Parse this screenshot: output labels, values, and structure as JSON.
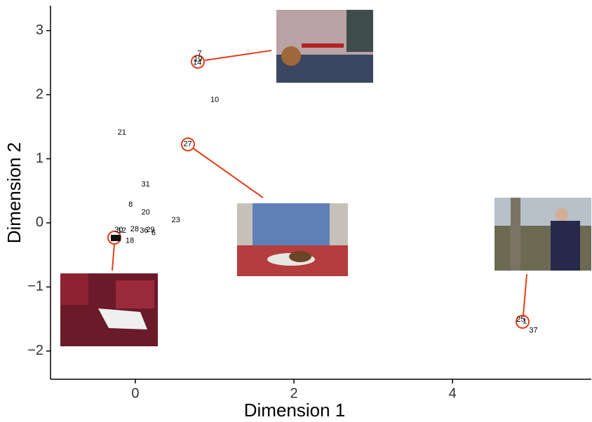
{
  "chart_data": {
    "type": "scatter",
    "x_label": "Dimension 1",
    "y_label": "Dimension 2",
    "labels": [
      "7",
      "14",
      "19",
      "10",
      "21",
      "27",
      "31",
      "8",
      "20",
      "23",
      "28",
      "36",
      "29",
      "6",
      "18",
      "30",
      "12",
      "25",
      "1",
      "37"
    ],
    "x": [
      0.81,
      0.78,
      0.79,
      1.0,
      -0.17,
      0.66,
      0.13,
      -0.06,
      0.13,
      0.51,
      -0.01,
      0.11,
      0.19,
      0.23,
      -0.07,
      -0.21,
      -0.17,
      4.86,
      4.91,
      5.02
    ],
    "values": [
      2.64,
      2.5,
      2.55,
      1.92,
      1.41,
      1.23,
      0.6,
      0.28,
      0.16,
      0.04,
      -0.1,
      -0.12,
      -0.11,
      -0.16,
      -0.28,
      -0.11,
      -0.12,
      -1.51,
      -1.54,
      -1.68
    ],
    "xlim": [
      -1.07,
      5.75
    ],
    "ylim": [
      -2.44,
      3.39
    ],
    "xticks": [
      0,
      2,
      4
    ],
    "yticks": [
      {
        "value": -2,
        "label": "−2"
      },
      {
        "value": -1,
        "label": "−1"
      },
      0,
      1,
      2,
      3
    ],
    "color": "#000000"
  }
}
